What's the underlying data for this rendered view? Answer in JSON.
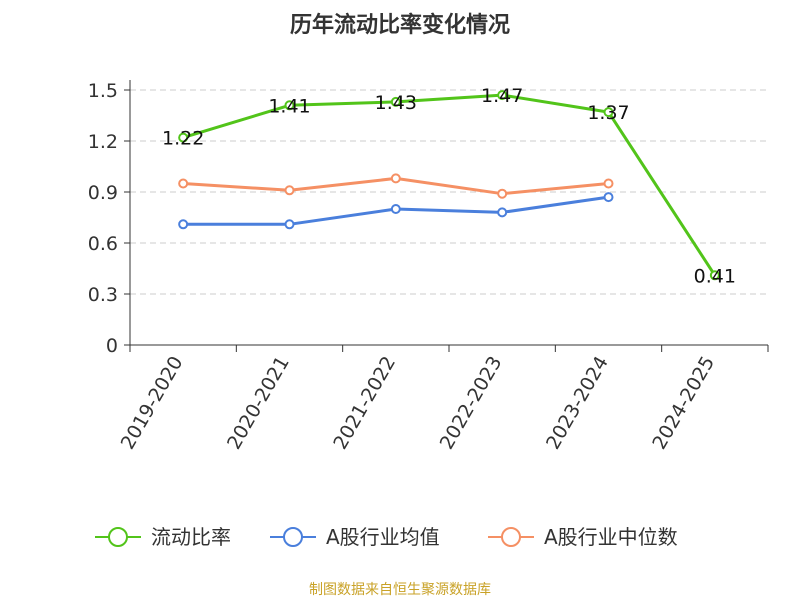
{
  "chart_data": {
    "type": "line",
    "title": "历年流动比率变化情况",
    "categories": [
      "2019-2020",
      "2020-2021",
      "2021-2022",
      "2022-2023",
      "2023-2024",
      "2024-2025"
    ],
    "ylim": [
      0,
      1.5
    ],
    "yticks": [
      "0",
      "0.3",
      "0.6",
      "0.9",
      "1.2",
      "1.5"
    ],
    "grid": true,
    "legend_position": "bottom",
    "series": [
      {
        "name": "流动比率",
        "color": "#52c41a",
        "values": [
          1.22,
          1.41,
          1.43,
          1.47,
          1.37,
          0.41
        ],
        "labels": [
          "1.22",
          "1.41",
          "1.43",
          "1.47",
          "1.37",
          "0.41"
        ]
      },
      {
        "name": "A股行业均值",
        "color": "#4a7fdc",
        "values": [
          0.71,
          0.71,
          0.8,
          0.78,
          0.87,
          null
        ]
      },
      {
        "name": "A股行业中位数",
        "color": "#f59064",
        "values": [
          0.95,
          0.91,
          0.98,
          0.89,
          0.95,
          null
        ]
      }
    ]
  },
  "source": "制图数据来自恒生聚源数据库"
}
